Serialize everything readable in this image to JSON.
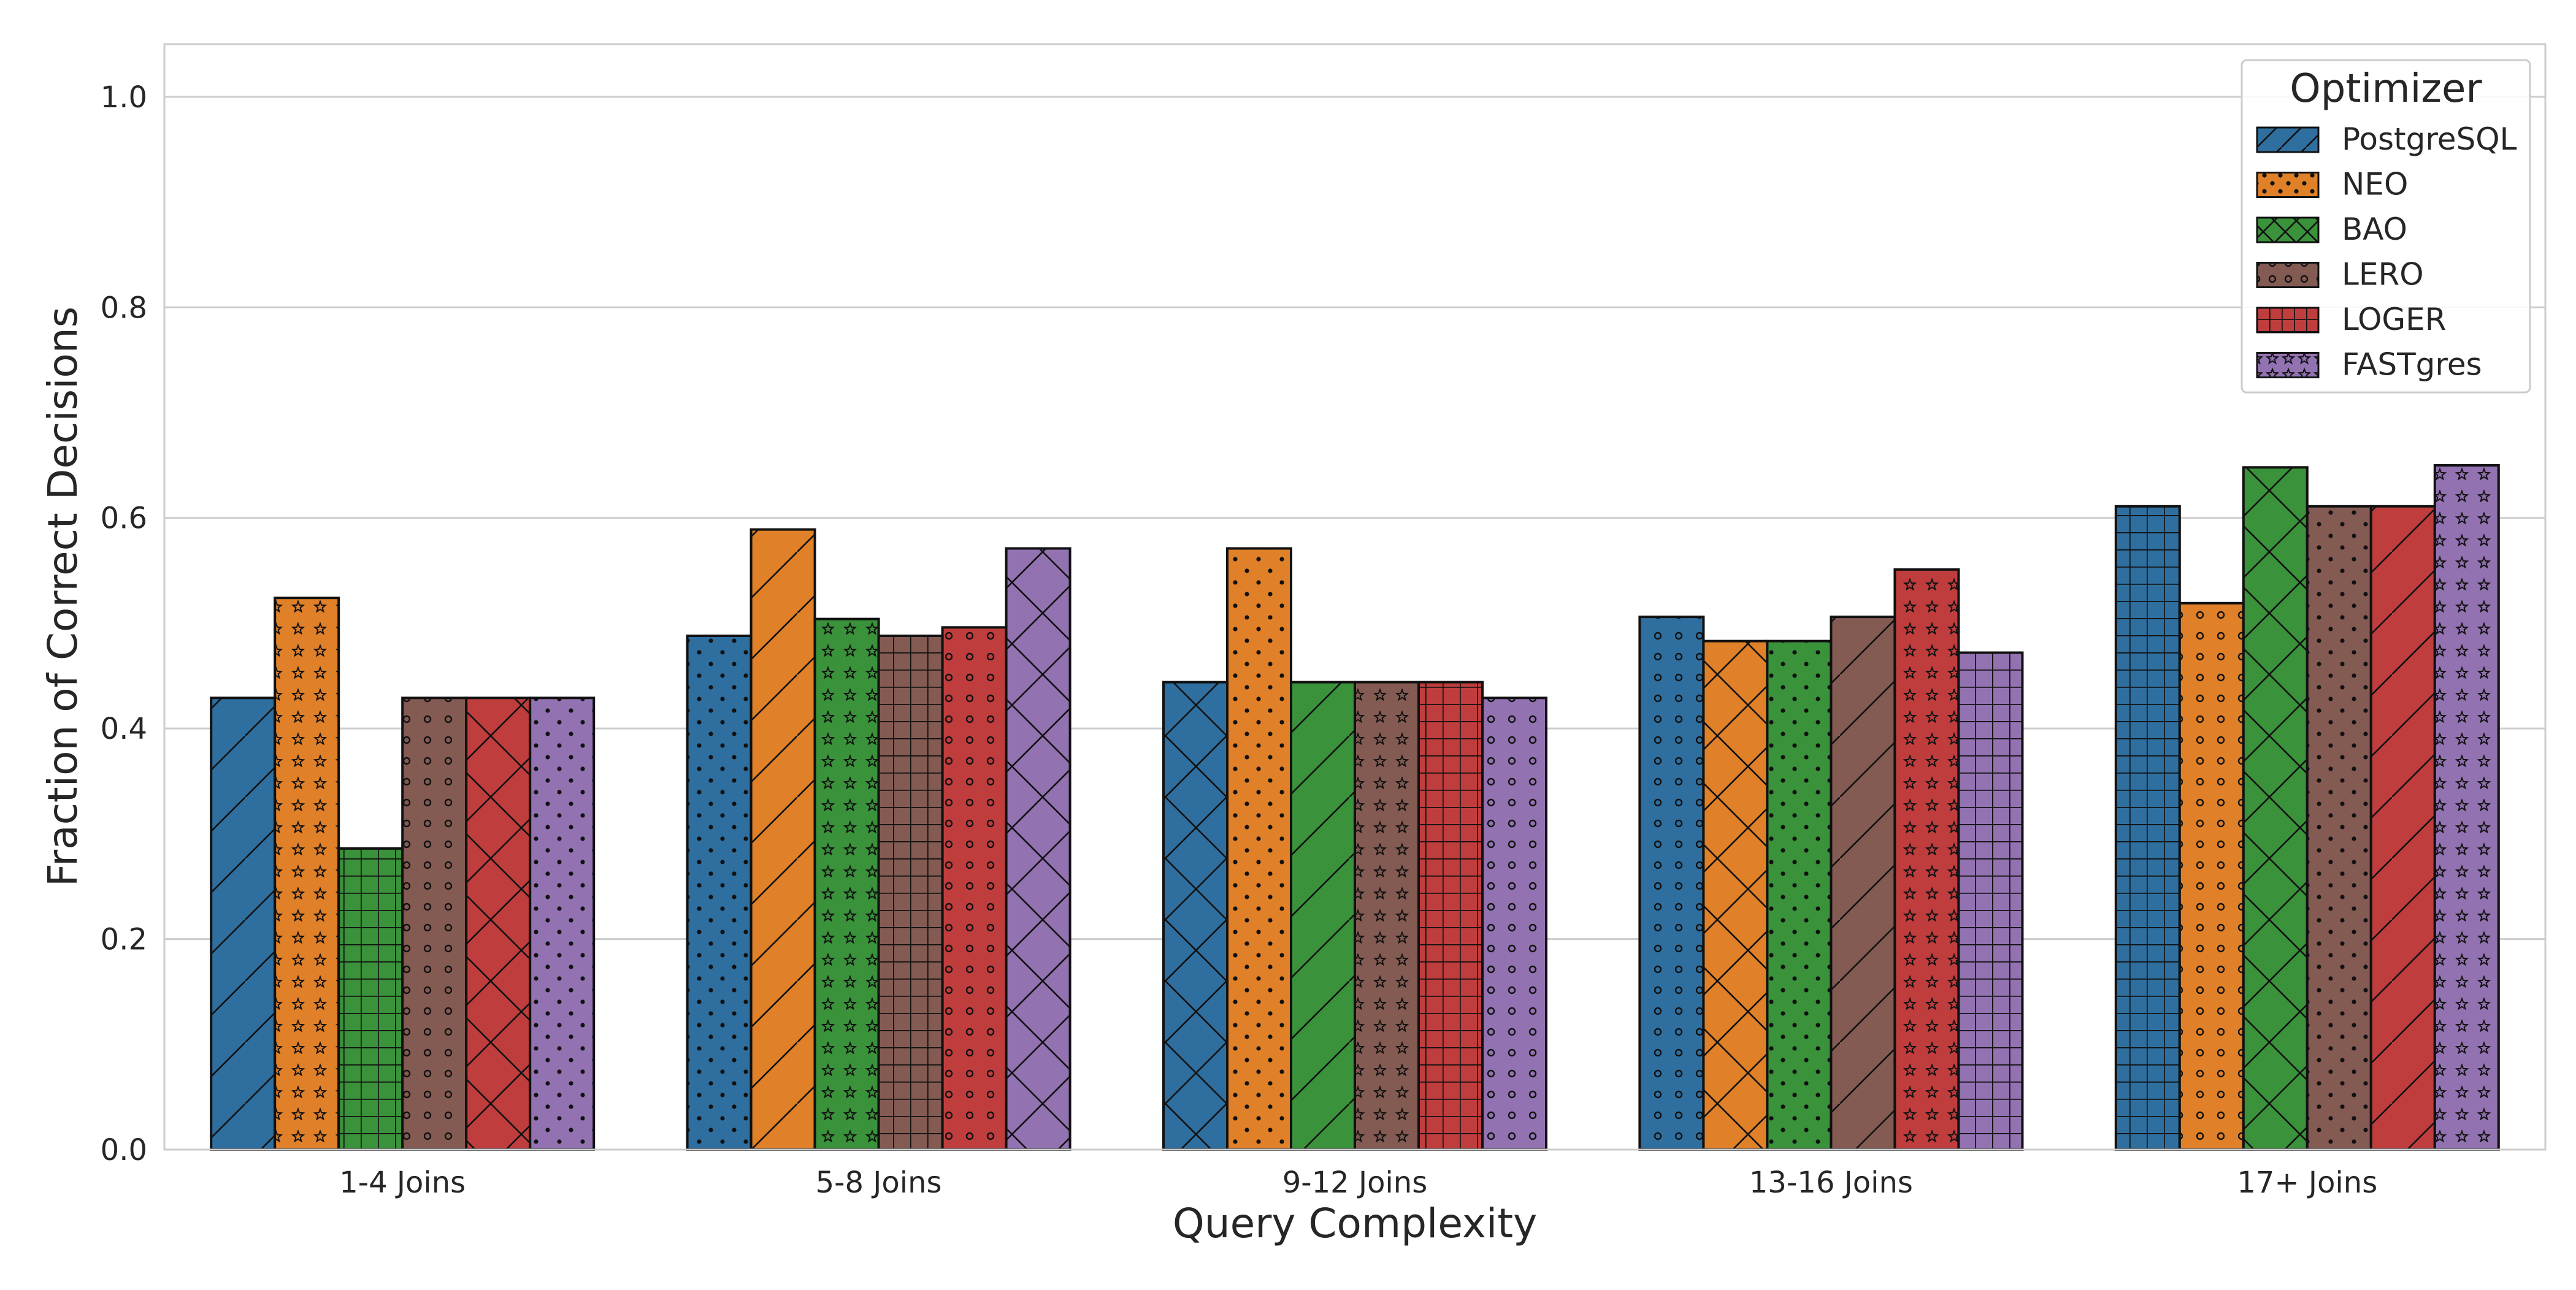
{
  "chart_data": {
    "type": "bar",
    "xlabel": "Query Complexity",
    "ylabel": "Fraction of Correct Decisions",
    "ylim": [
      0,
      1.05
    ],
    "yticks": [
      "0.0",
      "0.2",
      "0.4",
      "0.6",
      "0.8",
      "1.0"
    ],
    "grid": "horizontal",
    "legend": {
      "title": "Optimizer",
      "placement": "top-right"
    },
    "categories": [
      "1-4 Joins",
      "5-8 Joins",
      "9-12 Joins",
      "13-16 Joins",
      "17+ Joins"
    ],
    "series": [
      {
        "name": "PostgreSQL",
        "color": "#2f6f9f",
        "values": [
          0.429,
          0.488,
          0.444,
          0.506,
          0.611
        ]
      },
      {
        "name": "NEO",
        "color": "#e08028",
        "values": [
          0.524,
          0.589,
          0.571,
          0.483,
          0.519
        ]
      },
      {
        "name": "BAO",
        "color": "#3a923a",
        "values": [
          0.286,
          0.504,
          0.444,
          0.483,
          0.648
        ]
      },
      {
        "name": "LERO",
        "color": "#845b53",
        "values": [
          0.429,
          0.488,
          0.444,
          0.506,
          0.611
        ]
      },
      {
        "name": "LOGER",
        "color": "#c03d3e",
        "values": [
          0.429,
          0.496,
          0.444,
          0.551,
          0.611
        ]
      },
      {
        "name": "FASTgres",
        "color": "#9372b2",
        "values": [
          0.429,
          0.571,
          0.429,
          0.472,
          0.65
        ]
      }
    ],
    "legend_hatches": [
      "diagonal",
      "dots",
      "cross",
      "circles",
      "grid",
      "stars"
    ],
    "bar_hatches": [
      [
        "diagonal",
        "stars",
        "grid",
        "circles",
        "cross",
        "dots"
      ],
      [
        "dots",
        "diagonal",
        "stars",
        "grid",
        "circles",
        "cross"
      ],
      [
        "cross",
        "dots",
        "diagonal",
        "stars",
        "grid",
        "circles"
      ],
      [
        "circles",
        "cross",
        "dots",
        "diagonal",
        "stars",
        "grid"
      ],
      [
        "grid",
        "circles",
        "cross",
        "dots",
        "diagonal",
        "stars"
      ]
    ]
  }
}
